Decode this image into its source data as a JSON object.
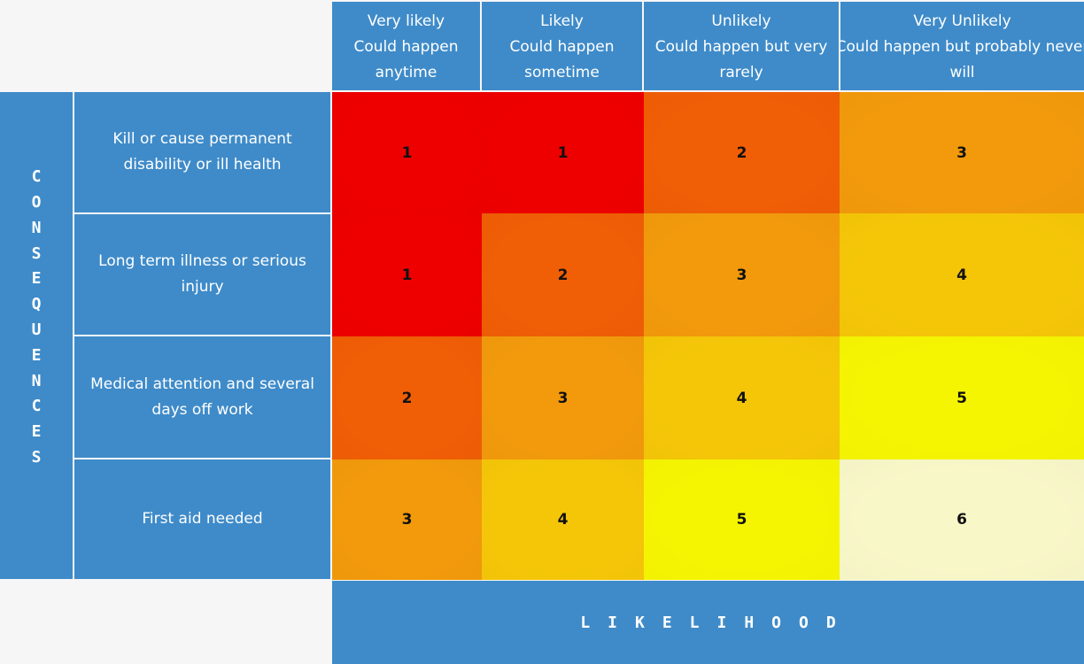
{
  "likelihood_axis": {
    "label": "LIKELIHOOD"
  },
  "consequences_axis": {
    "label": "CONSEQUENCES"
  },
  "columns": [
    {
      "line1": "Very likely",
      "line2": "Could happen",
      "line3": "anytime"
    },
    {
      "line1": "Likely",
      "line2": "Could happen",
      "line3": "sometime"
    },
    {
      "line1": "Unlikely",
      "line2": "Could happen but very",
      "line3": "rarely"
    },
    {
      "line1": "Very Unlikely",
      "line2": "Could happen but probably never",
      "line3": "will"
    }
  ],
  "rows": [
    {
      "line1": "Kill or cause permanent",
      "line2": "disability or ill health"
    },
    {
      "line1": "Long term illness or serious",
      "line2": "injury"
    },
    {
      "line1": "Medical attention and several",
      "line2": "days off work"
    },
    {
      "line1": "First aid needed",
      "line2": ""
    }
  ],
  "matrix": [
    [
      "1",
      "1",
      "2",
      "3"
    ],
    [
      "1",
      "2",
      "3",
      "4"
    ],
    [
      "2",
      "3",
      "4",
      "5"
    ],
    [
      "3",
      "4",
      "5",
      "6"
    ]
  ],
  "colors": {
    "header_blue": "#3f8bc9",
    "risk_1": "#ee0000",
    "risk_2": "#f05e06",
    "risk_3": "#f29a0c",
    "risk_4": "#f5c608",
    "risk_5": "#f5f502",
    "risk_6": "#f8f7c8"
  }
}
